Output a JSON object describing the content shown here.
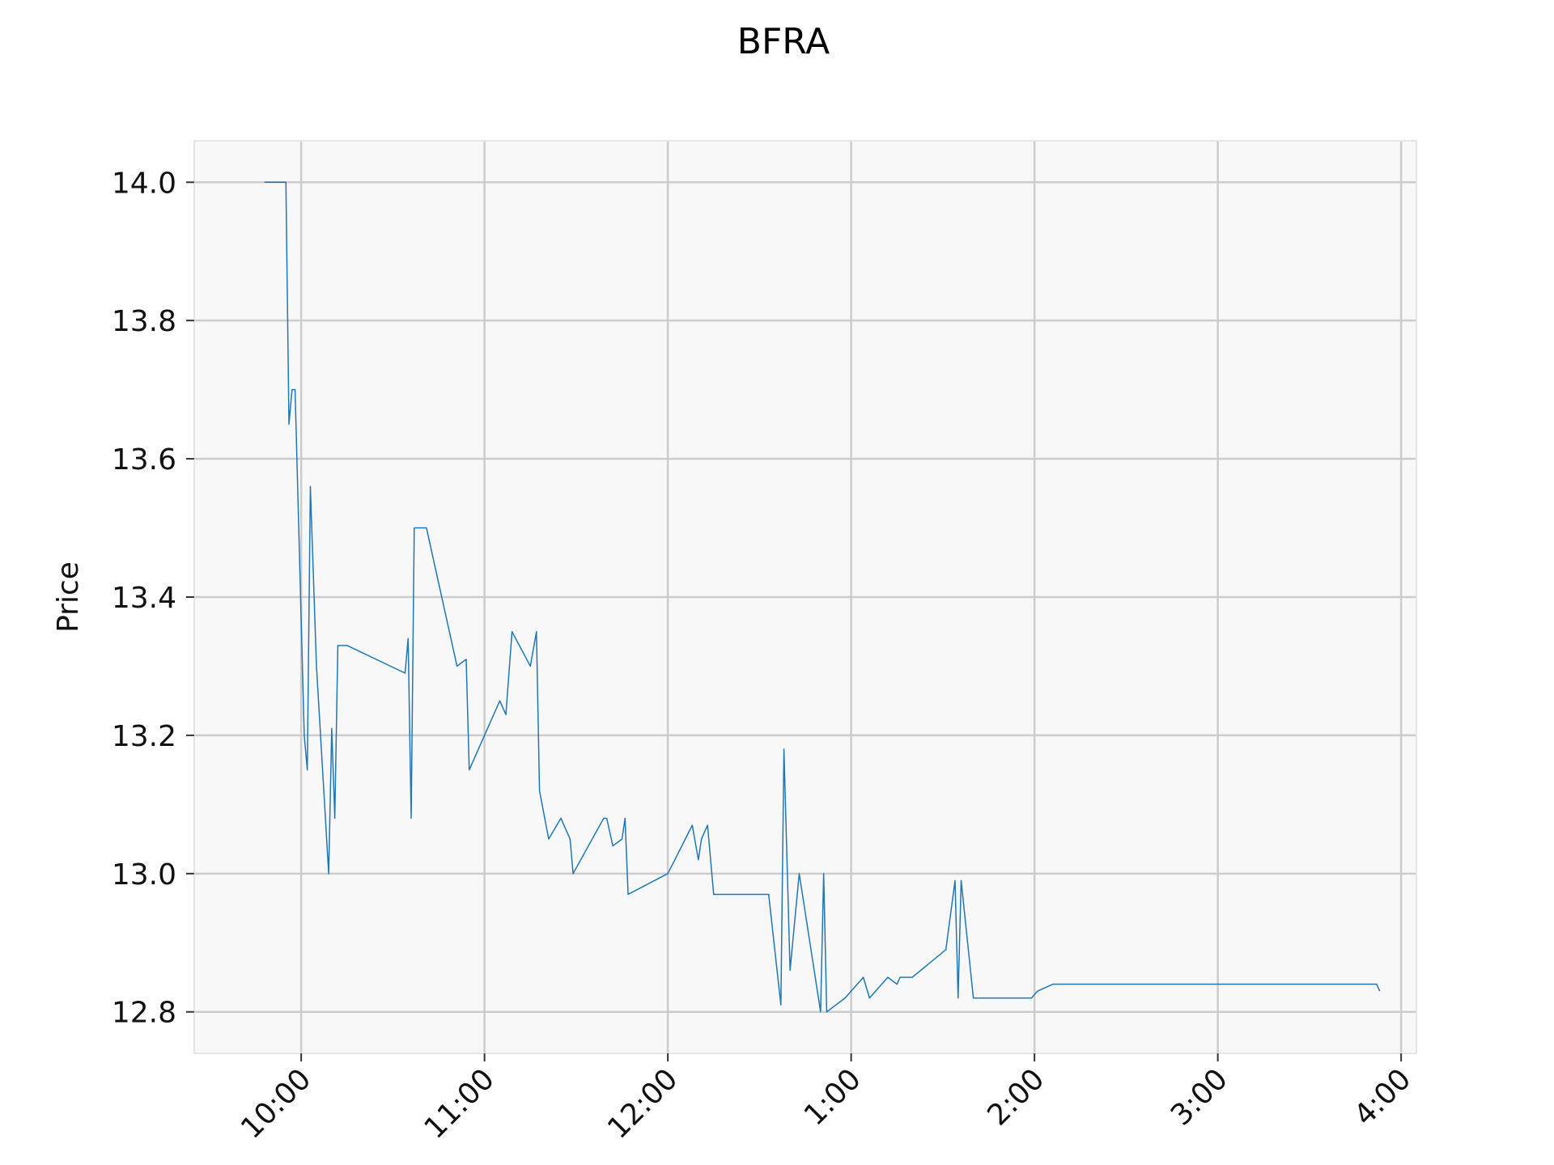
{
  "chart_data": {
    "type": "line",
    "title": "BFRA",
    "xlabel": "",
    "ylabel": "Price",
    "x_tick_labels": [
      "10:00",
      "11:00",
      "12:00",
      "1:00",
      "2:00",
      "3:00",
      "4:00"
    ],
    "y_tick_labels": [
      "12.8",
      "13.0",
      "13.2",
      "13.4",
      "13.6",
      "13.8",
      "14.0"
    ],
    "y_ticks": [
      12.8,
      13.0,
      13.2,
      13.4,
      13.6,
      13.8,
      14.0
    ],
    "ylim": [
      12.74,
      14.06
    ],
    "xlim": [
      "09:25",
      "16:05"
    ],
    "grid": true,
    "legend": "none",
    "colors": {
      "line": "#1f77b4",
      "plot_background": "#f8f8f8",
      "grid": "#cccccc",
      "spine": "#e6e6e6"
    },
    "series": [
      {
        "x": [
          "09:48",
          "09:55",
          "09:56",
          "09:57",
          "09:58",
          "10:01",
          "10:02",
          "10:03",
          "10:05",
          "10:09",
          "10:10",
          "10:11",
          "10:12",
          "10:15",
          "10:34",
          "10:35",
          "10:36",
          "10:37",
          "10:41",
          "10:51",
          "10:54",
          "10:55",
          "11:05",
          "11:07",
          "11:09",
          "11:15",
          "11:17",
          "11:18",
          "11:21",
          "11:25",
          "11:28",
          "11:29",
          "11:39",
          "11:40",
          "11:42",
          "11:45",
          "11:46",
          "11:47",
          "11:47",
          "12:00",
          "12:08",
          "12:10",
          "12:11",
          "12:13",
          "12:15",
          "12:16",
          "12:18",
          "12:20",
          "12:21",
          "12:23",
          "12:25",
          "12:27",
          "12:29",
          "12:30",
          "12:33",
          "12:37",
          "12:38",
          "12:40",
          "12:43",
          "12:50",
          "12:51",
          "12:52",
          "12:55",
          "12:58",
          "13:04",
          "13:06",
          "13:12",
          "13:15",
          "13:16",
          "13:20",
          "13:31",
          "13:34",
          "13:35",
          "13:36",
          "13:40",
          "13:48",
          "13:59",
          "14:01",
          "14:06",
          "14:07",
          "14:13",
          "14:17",
          "14:21",
          "14:24",
          "14:25",
          "14:28",
          "14:30",
          "14:31",
          "14:44",
          "14:54",
          "14:55",
          "14:57",
          "15:10",
          "15:16",
          "15:19",
          "15:27",
          "15:30",
          "15:32",
          "15:33",
          "15:34",
          "15:35",
          "15:37",
          "15:38",
          "15:41",
          "15:42",
          "15:43",
          "15:46",
          "15:51",
          "15:52",
          "15:53"
        ],
        "y": [
          14.0,
          14.0,
          13.65,
          13.7,
          13.7,
          13.2,
          13.15,
          13.56,
          13.3,
          13.0,
          13.21,
          13.08,
          13.33,
          13.33,
          13.29,
          13.34,
          13.08,
          13.5,
          13.5,
          13.3,
          13.31,
          13.15,
          13.25,
          13.23,
          13.35,
          13.3,
          13.35,
          13.12,
          13.05,
          13.08,
          13.05,
          13.0,
          13.08,
          13.08,
          13.04,
          13.05,
          13.08,
          12.97,
          12.97,
          13.0,
          13.07,
          13.02,
          13.05,
          13.07,
          12.97,
          12.97,
          12.97,
          12.97,
          12.97,
          12.97,
          12.97,
          12.97,
          12.97,
          12.97,
          12.97,
          12.81,
          13.18,
          12.86,
          13.0,
          12.8,
          13.0,
          12.8,
          12.81,
          12.82,
          12.85,
          12.82,
          12.85,
          12.84,
          12.85,
          12.85,
          12.89,
          12.99,
          12.82,
          12.99,
          12.82,
          12.82,
          12.82,
          12.83,
          12.84,
          12.84,
          12.84,
          12.84,
          12.84,
          12.84,
          12.84,
          12.84,
          12.84,
          12.84,
          12.84,
          12.84,
          12.84,
          12.84,
          12.84,
          12.84,
          12.84,
          12.84,
          12.84,
          12.84,
          12.84,
          12.84,
          12.84,
          12.84,
          12.84,
          12.84,
          12.84,
          12.84,
          12.84,
          12.84,
          12.84,
          12.83
        ]
      }
    ]
  }
}
